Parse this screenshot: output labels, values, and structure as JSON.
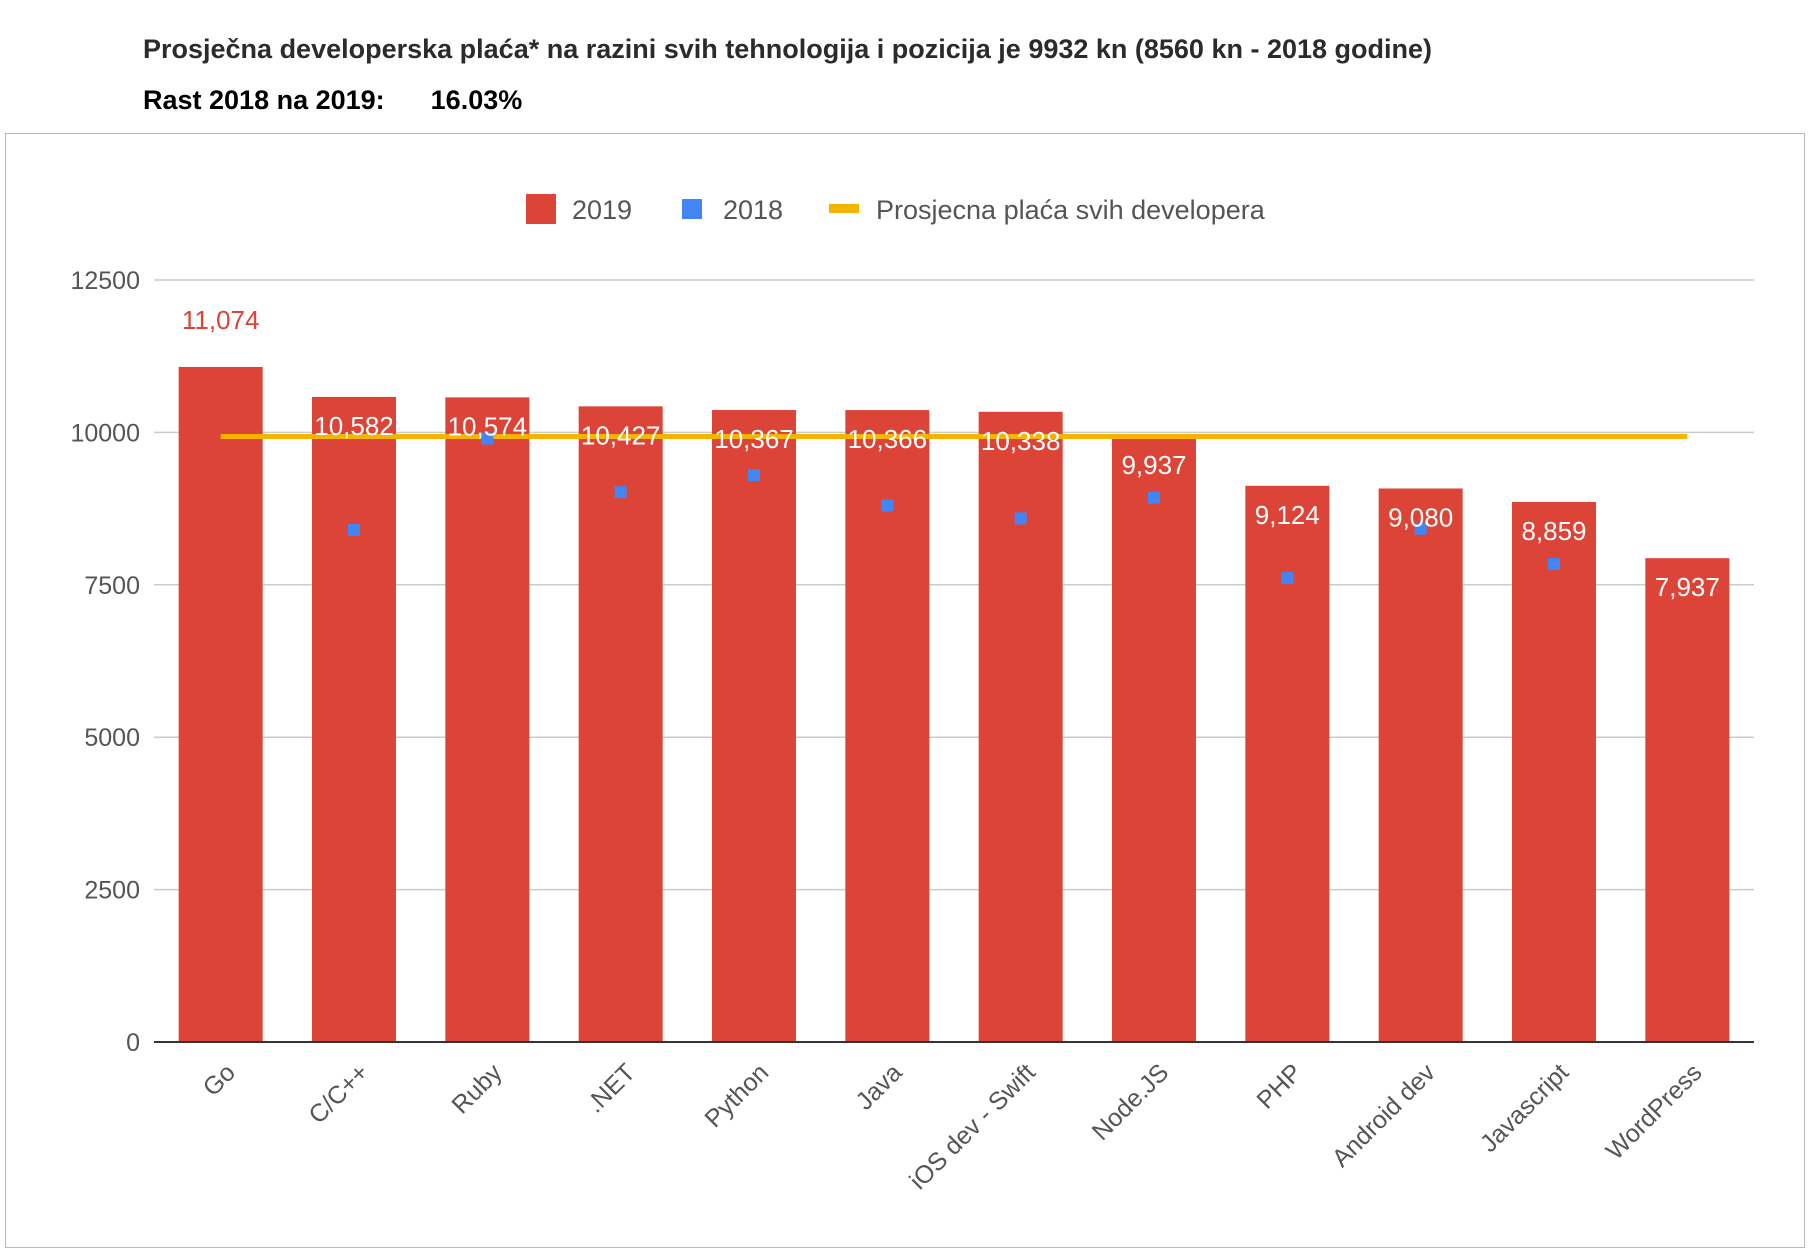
{
  "heading": {
    "title": "Prosječna developerska plaća* na razini svih tehnologija i pozicija je 9932 kn (8560 kn - 2018 godine)",
    "growth_label": "Rast 2018 na 2019:",
    "growth_value": "16.03%"
  },
  "colors": {
    "bar_2019": "#db4437",
    "marker_2018": "#4285f4",
    "average_line": "#f4b400",
    "label_above": "#db4437",
    "label_inside": "#ffffff"
  },
  "chart_data": {
    "type": "bar",
    "title": "",
    "xlabel": "",
    "ylabel": "",
    "ylim": [
      0,
      12500
    ],
    "yticks": [
      0,
      2500,
      5000,
      7500,
      10000,
      12500
    ],
    "grid": true,
    "legend_position": "top",
    "categories": [
      "Go",
      "C/C++",
      "Ruby",
      ".NET",
      "Python",
      "Java",
      "iOS dev - Swift",
      "Node.JS",
      "PHP",
      "Android dev",
      "Javascript",
      "WordPress"
    ],
    "series": [
      {
        "name": "2019",
        "kind": "bar",
        "values": [
          11074,
          10582,
          10574,
          10427,
          10367,
          10366,
          10338,
          9937,
          9124,
          9080,
          8859,
          7937
        ],
        "labels": [
          "11,074",
          "10,582",
          "10,574",
          "10,427",
          "10,367",
          "10,366",
          "10,338",
          "9,937",
          "9,124",
          "9,080",
          "8,859",
          "7,937"
        ]
      },
      {
        "name": "2018",
        "kind": "marker",
        "values": [
          null,
          8400,
          9900,
          9020,
          9300,
          8800,
          8590,
          8930,
          7610,
          8420,
          7840,
          null
        ]
      },
      {
        "name": "Prosjecna plaća svih developera",
        "kind": "line",
        "value": 9932
      }
    ]
  }
}
